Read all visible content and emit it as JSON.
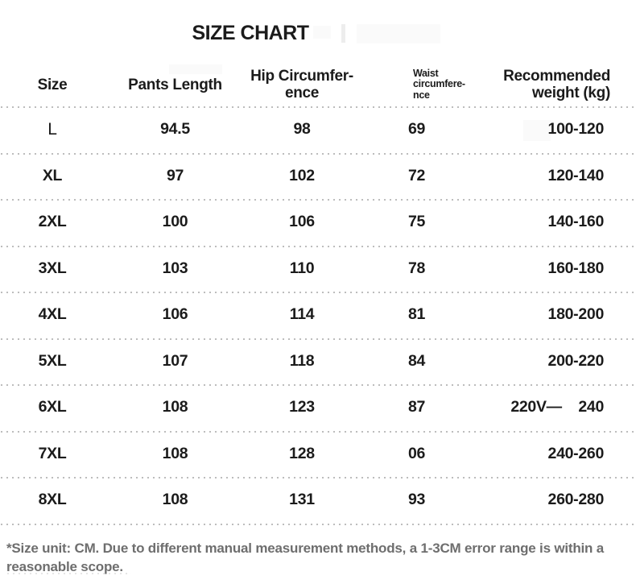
{
  "title": "SIZE CHART",
  "table": {
    "headers": [
      {
        "id": "size",
        "lines": [
          "Size"
        ]
      },
      {
        "id": "pants-length",
        "lines": [
          "Pants Length"
        ]
      },
      {
        "id": "hip-circumference",
        "lines": [
          "Hip Circumfer-",
          "ence"
        ]
      },
      {
        "id": "waist-circumference",
        "lines": [
          "Waist",
          "circumfere-",
          "nce"
        ]
      },
      {
        "id": "recommended-weight",
        "lines": [
          "Recommended",
          "weight (kg)"
        ]
      }
    ],
    "rows": [
      [
        "L",
        "94.5",
        "98",
        "69",
        "100-120"
      ],
      [
        "XL",
        "97",
        "102",
        "72",
        "120-140"
      ],
      [
        "2XL",
        "100",
        "106",
        "75",
        "140-160"
      ],
      [
        "3XL",
        "103",
        "110",
        "78",
        "160-180"
      ],
      [
        "4XL",
        "106",
        "114",
        "81",
        "180-200"
      ],
      [
        "5XL",
        "107",
        "118",
        "84",
        "200-220"
      ],
      [
        "6XL",
        "108",
        "123",
        "87",
        "220V—    240"
      ],
      [
        "7XL",
        "108",
        "128",
        "06",
        "240-260"
      ],
      [
        "8XL",
        "108",
        "131",
        "93",
        "260-280"
      ]
    ]
  },
  "footnote": "*Size unit: CM. Due to different manual measurement methods, a 1-3CM error range is within a reasonable scope.",
  "colors": {
    "text": "#1b1b1b",
    "footnote": "#6e6e6e",
    "dot": "#b9b9b9"
  }
}
